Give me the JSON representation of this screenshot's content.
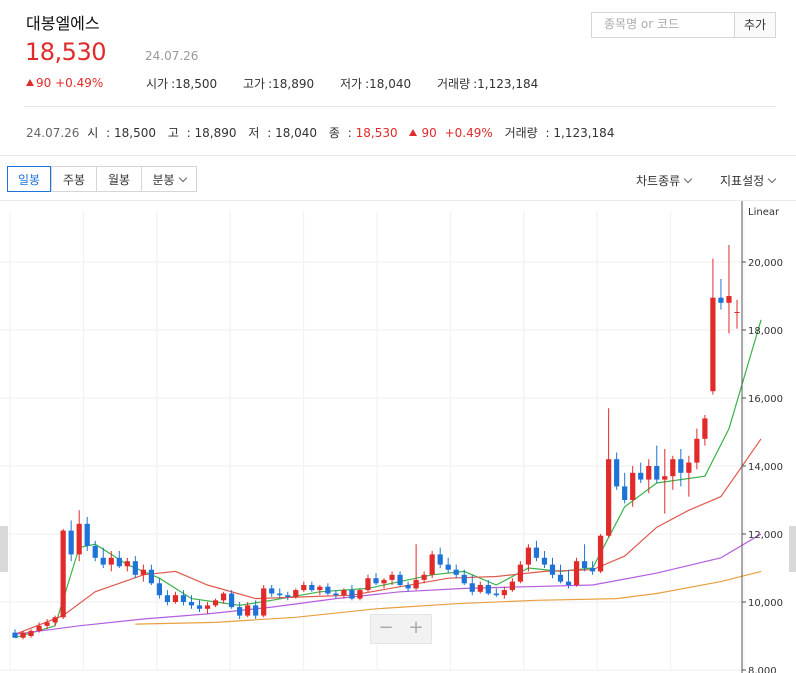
{
  "header": {
    "stock_name": "대봉엘에스",
    "price": "18,530",
    "date": "24.07.26",
    "change_amount": "90",
    "change_pct": "+0.49%",
    "open_label": "시가",
    "open": "18,500",
    "high_label": "고가",
    "high": "18,890",
    "low_label": "저가",
    "low": "18,040",
    "volume_label": "거래량",
    "volume": "1,123,184"
  },
  "search": {
    "placeholder": "종목명 or 코드",
    "add_label": "추가"
  },
  "summary": {
    "date": "24.07.26",
    "open_label": "시",
    "open": "18,500",
    "high_label": "고",
    "high": "18,890",
    "low_label": "저",
    "low": "18,040",
    "close_label": "종",
    "close": "18,530",
    "change_amount": "90",
    "change_pct": "+0.49%",
    "volume_label": "거래량",
    "volume": "1,123,184"
  },
  "toolbar": {
    "tabs": [
      "일봉",
      "주봉",
      "월봉",
      "분봉"
    ],
    "active_tab": "일봉",
    "chart_type_label": "차트종류",
    "indicator_label": "지표설정"
  },
  "colors": {
    "up": "#e12a2a",
    "down": "#1e73d8",
    "ma5": "#3ab34a",
    "ma20": "#e05a50",
    "ma60": "#b45ee0",
    "ma120": "#e8a040"
  },
  "chart_data": {
    "type": "candlestick",
    "scale": "Linear",
    "ylim": [
      8000,
      21500
    ],
    "y_ticks": [
      "8,000",
      "10,000",
      "12,000",
      "14,000",
      "16,000",
      "18,000",
      "20,000"
    ],
    "grid": true,
    "candles": [
      [
        9100,
        9200,
        8950,
        8950
      ],
      [
        8950,
        9150,
        8900,
        9100
      ],
      [
        9000,
        9200,
        8950,
        9150
      ],
      [
        9150,
        9400,
        9100,
        9300
      ],
      [
        9300,
        9500,
        9200,
        9400
      ],
      [
        9400,
        9600,
        9300,
        9550
      ],
      [
        9550,
        12150,
        9500,
        12100
      ],
      [
        12100,
        12400,
        11200,
        11400
      ],
      [
        11400,
        12700,
        11200,
        12300
      ],
      [
        12300,
        12500,
        11500,
        11650
      ],
      [
        11650,
        11800,
        11200,
        11300
      ],
      [
        11300,
        11600,
        11000,
        11100
      ],
      [
        11100,
        11500,
        10900,
        11300
      ],
      [
        11300,
        11500,
        11000,
        11050
      ],
      [
        11050,
        11300,
        10900,
        11200
      ],
      [
        11200,
        11350,
        10700,
        10800
      ],
      [
        10800,
        11100,
        10600,
        10950
      ],
      [
        10950,
        11100,
        10500,
        10550
      ],
      [
        10550,
        10700,
        10100,
        10200
      ],
      [
        10200,
        10350,
        9900,
        10000
      ],
      [
        10000,
        10300,
        9950,
        10200
      ],
      [
        10200,
        10350,
        9900,
        10000
      ],
      [
        10000,
        10200,
        9800,
        9900
      ],
      [
        9900,
        10050,
        9700,
        9800
      ],
      [
        9800,
        10000,
        9650,
        9900
      ],
      [
        9900,
        10100,
        9850,
        10050
      ],
      [
        10050,
        10300,
        9950,
        10250
      ],
      [
        10250,
        10350,
        9800,
        9850
      ],
      [
        9850,
        10000,
        9500,
        9600
      ],
      [
        9600,
        10000,
        9550,
        9900
      ],
      [
        9900,
        10050,
        9500,
        9600
      ],
      [
        9600,
        10500,
        9550,
        10400
      ],
      [
        10400,
        10500,
        10150,
        10250
      ],
      [
        10250,
        10400,
        10100,
        10200
      ],
      [
        10200,
        10300,
        10050,
        10150
      ],
      [
        10150,
        10400,
        10100,
        10350
      ],
      [
        10350,
        10600,
        10300,
        10500
      ],
      [
        10500,
        10600,
        10300,
        10350
      ],
      [
        10350,
        10500,
        10200,
        10450
      ],
      [
        10450,
        10550,
        10200,
        10250
      ],
      [
        10250,
        10350,
        10100,
        10200
      ],
      [
        10200,
        10400,
        10100,
        10350
      ],
      [
        10350,
        10500,
        10050,
        10100
      ],
      [
        10100,
        10400,
        10050,
        10350
      ],
      [
        10350,
        10800,
        10300,
        10700
      ],
      [
        10700,
        10850,
        10500,
        10550
      ],
      [
        10550,
        10700,
        10400,
        10650
      ],
      [
        10650,
        10900,
        10500,
        10800
      ],
      [
        10800,
        10900,
        10450,
        10500
      ],
      [
        10500,
        10600,
        10300,
        10400
      ],
      [
        10400,
        11700,
        10350,
        10650
      ],
      [
        10650,
        10900,
        10550,
        10800
      ],
      [
        10800,
        11500,
        10700,
        11400
      ],
      [
        11400,
        11600,
        11000,
        11100
      ],
      [
        11100,
        11300,
        10850,
        10950
      ],
      [
        10950,
        11100,
        10700,
        10800
      ],
      [
        10800,
        10950,
        10500,
        10550
      ],
      [
        10550,
        10800,
        10200,
        10300
      ],
      [
        10300,
        10600,
        10250,
        10500
      ],
      [
        10500,
        10650,
        10200,
        10250
      ],
      [
        10250,
        10400,
        10150,
        10200
      ],
      [
        10200,
        10450,
        10100,
        10350
      ],
      [
        10350,
        10700,
        10300,
        10600
      ],
      [
        10600,
        11200,
        10550,
        11100
      ],
      [
        11100,
        11700,
        10900,
        11600
      ],
      [
        11600,
        11800,
        11200,
        11300
      ],
      [
        11300,
        11500,
        11000,
        11100
      ],
      [
        11100,
        11300,
        10700,
        10800
      ],
      [
        10800,
        11100,
        10550,
        10600
      ],
      [
        10600,
        10950,
        10400,
        10500
      ],
      [
        10500,
        11300,
        10450,
        11200
      ],
      [
        11200,
        11700,
        10900,
        11000
      ],
      [
        11000,
        11200,
        10800,
        10900
      ],
      [
        10900,
        12000,
        10850,
        11950
      ],
      [
        11950,
        15700,
        11900,
        14200
      ],
      [
        14200,
        14400,
        13300,
        13400
      ],
      [
        13400,
        13800,
        12900,
        13000
      ],
      [
        13000,
        14000,
        12800,
        13800
      ],
      [
        13800,
        14100,
        13500,
        13600
      ],
      [
        13600,
        14200,
        13200,
        14000
      ],
      [
        14000,
        14600,
        13500,
        13600
      ],
      [
        13600,
        14500,
        12600,
        13700
      ],
      [
        13700,
        14300,
        13300,
        14200
      ],
      [
        14200,
        14500,
        13400,
        13800
      ],
      [
        13800,
        14300,
        13100,
        14100
      ],
      [
        14100,
        15100,
        13900,
        14800
      ],
      [
        14800,
        15500,
        14600,
        15400
      ],
      [
        16200,
        20100,
        16100,
        18950
      ],
      [
        18950,
        19500,
        18600,
        18800
      ],
      [
        18800,
        20500,
        17900,
        19000
      ],
      [
        18500,
        18890,
        18040,
        18530
      ]
    ],
    "moving_averages": [
      {
        "name": "MA5",
        "values": [
          [
            0,
            8950
          ],
          [
            5,
            9300
          ],
          [
            8,
            11600
          ],
          [
            10,
            11700
          ],
          [
            14,
            11100
          ],
          [
            18,
            10700
          ],
          [
            22,
            10100
          ],
          [
            28,
            9900
          ],
          [
            32,
            10050
          ],
          [
            38,
            10300
          ],
          [
            44,
            10400
          ],
          [
            48,
            10600
          ],
          [
            52,
            10800
          ],
          [
            56,
            10900
          ],
          [
            60,
            10500
          ],
          [
            64,
            11000
          ],
          [
            68,
            10900
          ],
          [
            72,
            11000
          ],
          [
            76,
            12800
          ],
          [
            80,
            13500
          ],
          [
            86,
            13700
          ],
          [
            89,
            15100
          ],
          [
            93,
            18300
          ]
        ]
      },
      {
        "name": "MA20",
        "values": [
          [
            0,
            9050
          ],
          [
            6,
            9600
          ],
          [
            10,
            10300
          ],
          [
            16,
            10800
          ],
          [
            20,
            10900
          ],
          [
            24,
            10500
          ],
          [
            30,
            10100
          ],
          [
            36,
            10150
          ],
          [
            42,
            10200
          ],
          [
            48,
            10450
          ],
          [
            54,
            10700
          ],
          [
            60,
            10750
          ],
          [
            66,
            10900
          ],
          [
            72,
            10950
          ],
          [
            76,
            11350
          ],
          [
            80,
            12200
          ],
          [
            84,
            12700
          ],
          [
            88,
            13100
          ],
          [
            93,
            14800
          ]
        ]
      },
      {
        "name": "MA60",
        "values": [
          [
            0,
            9050
          ],
          [
            8,
            9300
          ],
          [
            16,
            9500
          ],
          [
            24,
            9650
          ],
          [
            32,
            9850
          ],
          [
            40,
            10100
          ],
          [
            48,
            10300
          ],
          [
            56,
            10400
          ],
          [
            64,
            10450
          ],
          [
            72,
            10500
          ],
          [
            80,
            10850
          ],
          [
            88,
            11300
          ],
          [
            93,
            12000
          ]
        ]
      },
      {
        "name": "MA120",
        "values": [
          [
            15,
            9350
          ],
          [
            25,
            9400
          ],
          [
            35,
            9550
          ],
          [
            45,
            9800
          ],
          [
            55,
            9950
          ],
          [
            65,
            10050
          ],
          [
            75,
            10100
          ],
          [
            80,
            10250
          ],
          [
            88,
            10600
          ],
          [
            93,
            10900
          ]
        ]
      }
    ]
  }
}
